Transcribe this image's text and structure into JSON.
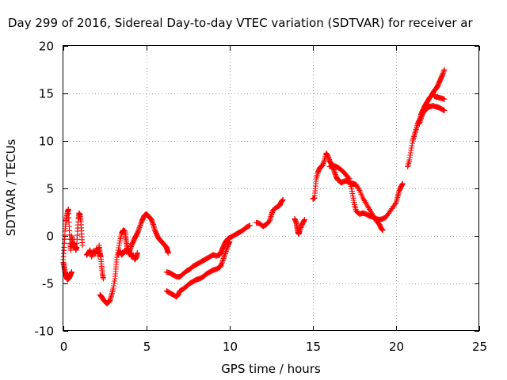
{
  "chart_data": {
    "type": "scatter",
    "title": "Day 299 of 2016, Sidereal Day-to-day VTEC variation (SDTVAR) for receiver ar",
    "xlabel": "GPS time / hours",
    "ylabel": "SDTVAR / TECUs",
    "xlim": [
      0,
      25
    ],
    "ylim": [
      -10,
      20
    ],
    "xticks": [
      "0",
      "5",
      "10",
      "15",
      "20",
      "25"
    ],
    "yticks": [
      "-10",
      "-5",
      "0",
      "5",
      "10",
      "15",
      "20"
    ],
    "grid": true,
    "marker": "plus",
    "color": "#ff0000",
    "series": [
      {
        "segments": [
          [
            [
              0.0,
              -2.5
            ],
            [
              0.05,
              -1.2
            ],
            [
              0.1,
              0.5
            ],
            [
              0.15,
              1.5
            ],
            [
              0.2,
              2.0
            ],
            [
              0.25,
              2.5
            ],
            [
              0.3,
              2.8
            ],
            [
              0.35,
              1.0
            ],
            [
              0.4,
              -0.8
            ],
            [
              0.45,
              -1.5
            ],
            [
              0.5,
              0.0
            ],
            [
              0.55,
              -0.5
            ],
            [
              0.6,
              -1.2
            ],
            [
              0.65,
              -0.8
            ],
            [
              0.7,
              -1.0
            ],
            [
              0.75,
              -1.5
            ],
            [
              0.8,
              -1.2
            ],
            [
              0.85,
              0.5
            ],
            [
              0.9,
              1.8
            ],
            [
              0.95,
              2.4
            ],
            [
              1.0,
              2.2
            ],
            [
              1.05,
              1.5
            ],
            [
              1.1,
              0.2
            ],
            [
              1.15,
              -1.0
            ]
          ],
          [
            [
              0.0,
              -2.8
            ],
            [
              0.05,
              -3.3
            ],
            [
              0.1,
              -3.8
            ],
            [
              0.15,
              -4.1
            ],
            [
              0.2,
              -4.4
            ],
            [
              0.25,
              -4.6
            ],
            [
              0.3,
              -4.5
            ],
            [
              0.35,
              -4.4
            ],
            [
              0.4,
              -4.2
            ],
            [
              0.45,
              -4.0
            ],
            [
              0.5,
              -3.8
            ]
          ],
          [
            [
              1.4,
              -2.0
            ],
            [
              1.5,
              -1.8
            ],
            [
              1.6,
              -1.5
            ],
            [
              1.7,
              -2.2
            ],
            [
              1.8,
              -1.6
            ],
            [
              1.9,
              -1.9
            ],
            [
              2.0,
              -1.3
            ],
            [
              2.1,
              -2.1
            ],
            [
              2.15,
              -1.0
            ],
            [
              2.2,
              -1.8
            ],
            [
              2.25,
              -2.2
            ],
            [
              2.3,
              -3.2
            ],
            [
              2.35,
              -4.0
            ],
            [
              2.4,
              -4.5
            ]
          ],
          [
            [
              2.2,
              -6.2
            ],
            [
              2.3,
              -6.4
            ],
            [
              2.4,
              -6.7
            ],
            [
              2.5,
              -6.9
            ],
            [
              2.6,
              -7.1
            ],
            [
              2.7,
              -7.0
            ],
            [
              2.8,
              -6.8
            ],
            [
              2.9,
              -6.2
            ],
            [
              3.0,
              -5.5
            ],
            [
              3.1,
              -4.5
            ],
            [
              3.15,
              -3.5
            ],
            [
              3.2,
              -2.5
            ],
            [
              3.3,
              -1.5
            ],
            [
              3.4,
              -0.5
            ],
            [
              3.5,
              0.3
            ],
            [
              3.6,
              0.6
            ],
            [
              3.7,
              0.5
            ],
            [
              3.75,
              -0.2
            ],
            [
              3.8,
              -0.8
            ],
            [
              3.85,
              -1.4
            ],
            [
              3.9,
              -1.8
            ],
            [
              4.0,
              -1.5
            ],
            [
              4.1,
              -1.0
            ],
            [
              4.2,
              -0.6
            ],
            [
              4.3,
              -0.2
            ],
            [
              4.4,
              0.1
            ],
            [
              4.5,
              0.5
            ],
            [
              4.6,
              1.0
            ],
            [
              4.7,
              1.5
            ],
            [
              4.8,
              1.9
            ],
            [
              4.9,
              2.2
            ],
            [
              5.0,
              2.3
            ],
            [
              5.1,
              2.1
            ],
            [
              5.2,
              1.9
            ],
            [
              5.3,
              1.7
            ],
            [
              5.4,
              1.2
            ],
            [
              5.5,
              0.6
            ],
            [
              5.6,
              0.2
            ],
            [
              5.7,
              -0.2
            ],
            [
              5.8,
              -0.4
            ],
            [
              5.9,
              -0.6
            ],
            [
              6.0,
              -0.8
            ],
            [
              6.1,
              -1.0
            ],
            [
              6.2,
              -1.2
            ],
            [
              6.25,
              -1.5
            ],
            [
              6.3,
              -1.8
            ]
          ],
          [
            [
              3.3,
              -2.0
            ],
            [
              3.4,
              -1.6
            ],
            [
              3.5,
              -2.0
            ],
            [
              3.6,
              -1.8
            ],
            [
              3.7,
              -1.5
            ],
            [
              3.8,
              -1.7
            ],
            [
              3.9,
              -1.3
            ],
            [
              4.0,
              -1.8
            ],
            [
              4.1,
              -2.2
            ],
            [
              4.2,
              -2.0
            ],
            [
              4.3,
              -2.5
            ],
            [
              4.4,
              -2.2
            ],
            [
              4.45,
              -1.8
            ]
          ],
          [
            [
              6.2,
              -3.8
            ],
            [
              6.4,
              -3.9
            ],
            [
              6.6,
              -4.1
            ],
            [
              6.8,
              -4.3
            ],
            [
              7.0,
              -4.3
            ],
            [
              7.2,
              -4.0
            ],
            [
              7.4,
              -3.7
            ],
            [
              7.6,
              -3.5
            ],
            [
              7.8,
              -3.2
            ],
            [
              8.0,
              -3.0
            ],
            [
              8.2,
              -2.8
            ],
            [
              8.4,
              -2.6
            ],
            [
              8.6,
              -2.4
            ],
            [
              8.8,
              -2.2
            ],
            [
              9.0,
              -2.0
            ],
            [
              9.2,
              -2.1
            ],
            [
              9.4,
              -2.0
            ],
            [
              9.5,
              -1.6
            ],
            [
              9.6,
              -1.2
            ],
            [
              9.7,
              -0.8
            ],
            [
              9.8,
              -0.5
            ],
            [
              9.9,
              -0.3
            ],
            [
              10.0,
              -0.2
            ],
            [
              10.2,
              0.0
            ],
            [
              10.4,
              0.2
            ],
            [
              10.6,
              0.4
            ],
            [
              10.8,
              0.6
            ],
            [
              11.0,
              0.9
            ],
            [
              11.2,
              1.1
            ]
          ],
          [
            [
              6.2,
              -5.8
            ],
            [
              6.4,
              -6.0
            ],
            [
              6.6,
              -6.2
            ],
            [
              6.8,
              -6.4
            ],
            [
              6.9,
              -6.2
            ],
            [
              7.0,
              -5.8
            ],
            [
              7.2,
              -5.6
            ],
            [
              7.4,
              -5.3
            ],
            [
              7.6,
              -5.0
            ],
            [
              7.8,
              -4.8
            ],
            [
              8.0,
              -4.6
            ],
            [
              8.2,
              -4.5
            ],
            [
              8.4,
              -4.3
            ],
            [
              8.6,
              -4.0
            ],
            [
              8.8,
              -3.8
            ],
            [
              9.0,
              -3.6
            ],
            [
              9.2,
              -3.5
            ],
            [
              9.4,
              -3.3
            ],
            [
              9.5,
              -3.0
            ],
            [
              9.6,
              -2.5
            ],
            [
              9.7,
              -2.0
            ],
            [
              9.8,
              -1.5
            ],
            [
              9.9,
              -1.0
            ],
            [
              10.0,
              -0.6
            ]
          ],
          [
            [
              11.6,
              1.4
            ],
            [
              11.8,
              1.3
            ],
            [
              12.0,
              1.0
            ],
            [
              12.2,
              1.2
            ],
            [
              12.4,
              1.6
            ],
            [
              12.5,
              2.2
            ],
            [
              12.6,
              2.7
            ],
            [
              12.8,
              3.0
            ],
            [
              13.0,
              3.2
            ],
            [
              13.1,
              3.6
            ],
            [
              13.2,
              3.8
            ]
          ],
          [
            [
              13.9,
              1.8
            ],
            [
              14.0,
              1.4
            ],
            [
              14.05,
              0.9
            ],
            [
              14.1,
              0.4
            ],
            [
              14.15,
              0.2
            ],
            [
              14.2,
              0.5
            ],
            [
              14.3,
              1.0
            ],
            [
              14.4,
              1.4
            ],
            [
              14.5,
              1.7
            ]
          ],
          [
            [
              15.0,
              3.9
            ],
            [
              15.1,
              4.0
            ],
            [
              15.15,
              5.0
            ],
            [
              15.2,
              6.0
            ],
            [
              15.3,
              6.7
            ],
            [
              15.4,
              7.1
            ],
            [
              15.5,
              7.3
            ],
            [
              15.6,
              7.5
            ],
            [
              15.7,
              8.0
            ],
            [
              15.8,
              8.7
            ],
            [
              15.9,
              8.4
            ],
            [
              16.0,
              7.9
            ],
            [
              16.1,
              7.6
            ],
            [
              16.2,
              7.2
            ],
            [
              16.3,
              6.7
            ],
            [
              16.4,
              6.2
            ],
            [
              16.5,
              5.9
            ],
            [
              16.6,
              5.8
            ],
            [
              16.7,
              5.6
            ],
            [
              16.8,
              5.7
            ],
            [
              17.0,
              5.8
            ],
            [
              17.2,
              5.6
            ],
            [
              17.4,
              5.5
            ],
            [
              17.6,
              5.4
            ],
            [
              17.8,
              4.8
            ],
            [
              18.0,
              4.0
            ],
            [
              18.2,
              3.4
            ],
            [
              18.4,
              2.8
            ],
            [
              18.6,
              2.2
            ],
            [
              18.8,
              1.6
            ],
            [
              19.0,
              1.2
            ],
            [
              19.1,
              0.8
            ],
            [
              19.2,
              0.6
            ]
          ],
          [
            [
              16.0,
              7.3
            ],
            [
              16.2,
              7.4
            ],
            [
              16.4,
              7.3
            ],
            [
              16.6,
              7.1
            ],
            [
              16.8,
              6.8
            ],
            [
              17.0,
              6.4
            ],
            [
              17.2,
              6.0
            ],
            [
              17.3,
              5.2
            ],
            [
              17.4,
              4.2
            ],
            [
              17.5,
              3.3
            ],
            [
              17.6,
              2.6
            ],
            [
              17.8,
              2.3
            ],
            [
              18.0,
              2.4
            ],
            [
              18.2,
              2.3
            ],
            [
              18.4,
              2.1
            ],
            [
              18.6,
              2.0
            ],
            [
              18.8,
              1.8
            ],
            [
              19.0,
              1.7
            ],
            [
              19.2,
              1.8
            ],
            [
              19.4,
              2.0
            ],
            [
              19.6,
              2.5
            ],
            [
              19.8,
              3.0
            ],
            [
              20.0,
              3.5
            ],
            [
              20.1,
              4.2
            ],
            [
              20.2,
              4.8
            ],
            [
              20.3,
              5.2
            ],
            [
              20.4,
              5.5
            ]
          ],
          [
            [
              20.7,
              7.3
            ],
            [
              20.8,
              8.0
            ],
            [
              20.9,
              9.0
            ],
            [
              21.0,
              10.0
            ],
            [
              21.1,
              10.6
            ],
            [
              21.2,
              11.2
            ],
            [
              21.3,
              11.8
            ],
            [
              21.4,
              12.2
            ],
            [
              21.5,
              12.8
            ],
            [
              21.6,
              13.2
            ],
            [
              21.7,
              13.6
            ],
            [
              21.8,
              13.9
            ],
            [
              21.9,
              14.2
            ],
            [
              22.0,
              14.5
            ],
            [
              22.1,
              14.7
            ],
            [
              22.2,
              15.0
            ],
            [
              22.3,
              15.3
            ],
            [
              22.4,
              15.5
            ],
            [
              22.5,
              15.8
            ],
            [
              22.6,
              16.2
            ],
            [
              22.7,
              16.6
            ],
            [
              22.8,
              17.0
            ],
            [
              22.9,
              17.5
            ]
          ],
          [
            [
              21.4,
              11.8
            ],
            [
              21.5,
              12.4
            ],
            [
              21.6,
              12.9
            ],
            [
              21.7,
              13.2
            ],
            [
              21.8,
              13.3
            ],
            [
              21.9,
              13.5
            ],
            [
              22.0,
              13.6
            ],
            [
              22.2,
              13.7
            ],
            [
              22.4,
              13.6
            ],
            [
              22.6,
              13.5
            ],
            [
              22.8,
              13.3
            ],
            [
              22.9,
              13.2
            ]
          ],
          [
            [
              22.3,
              14.7
            ],
            [
              22.5,
              14.6
            ],
            [
              22.7,
              14.5
            ],
            [
              22.9,
              14.4
            ]
          ]
        ]
      }
    ]
  }
}
